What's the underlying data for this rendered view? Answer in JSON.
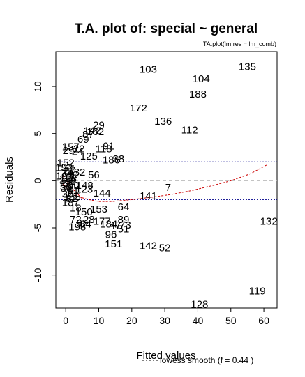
{
  "chart_data": {
    "type": "scatter",
    "title": "T.A. plot of:  special ~ general",
    "subtitle": "TA.plot(lm.res = lm_comb)",
    "xlabel": "Fitted values",
    "ylabel": "Residuals",
    "xlim": [
      -3,
      64
    ],
    "ylim": [
      -13.5,
      13.7
    ],
    "x_ticks": [
      0,
      10,
      20,
      30,
      40,
      50,
      60
    ],
    "y_ticks": [
      -10,
      -5,
      0,
      5,
      10
    ],
    "hlines": {
      "zero": 0,
      "bands": [
        2,
        -2
      ],
      "zero_color": "#bbbbbb",
      "band_color": "#00008b"
    },
    "lowess_color": "#cc0000",
    "legend": "lowess smooth (f = 0.44  )",
    "lowess": {
      "x": [
        -1,
        0,
        1,
        2,
        4,
        7,
        10,
        14,
        20,
        26,
        32,
        38,
        44,
        50,
        56,
        61
      ],
      "y": [
        -0.3,
        -0.6,
        -1.0,
        -1.35,
        -1.7,
        -2.0,
        -2.2,
        -2.2,
        -2.0,
        -1.75,
        -1.45,
        -1.05,
        -0.55,
        0.0,
        0.75,
        1.7
      ]
    },
    "lowess_lower": {
      "x": [
        -1,
        0,
        1,
        3,
        5
      ],
      "y": [
        0.5,
        0.2,
        -0.4,
        -1.2,
        -1.9
      ]
    },
    "points": [
      {
        "label": "103",
        "x": 25,
        "y": 11.8
      },
      {
        "label": "135",
        "x": 55,
        "y": 12.1
      },
      {
        "label": "104",
        "x": 41,
        "y": 10.8
      },
      {
        "label": "188",
        "x": 40,
        "y": 9.2
      },
      {
        "label": "172",
        "x": 22,
        "y": 7.7
      },
      {
        "label": "136",
        "x": 29.5,
        "y": 6.3
      },
      {
        "label": "112",
        "x": 37.5,
        "y": 5.4
      },
      {
        "label": "29",
        "x": 10,
        "y": 5.9
      },
      {
        "label": "142",
        "x": 8,
        "y": 5.3
      },
      {
        "label": "162",
        "x": 9,
        "y": 5.2
      },
      {
        "label": "87",
        "x": 6.8,
        "y": 4.9
      },
      {
        "label": "69",
        "x": 5.3,
        "y": 4.4
      },
      {
        "label": "91",
        "x": 13,
        "y": 3.7
      },
      {
        "label": "118",
        "x": 11.5,
        "y": 3.4
      },
      {
        "label": "157",
        "x": 1.5,
        "y": 3.6
      },
      {
        "label": "22",
        "x": 4,
        "y": 3.4
      },
      {
        "label": "29",
        "x": 0.8,
        "y": 3.2
      },
      {
        "label": "24",
        "x": 3.6,
        "y": 3.1
      },
      {
        "label": "125",
        "x": 7,
        "y": 2.6
      },
      {
        "label": "186",
        "x": 13.8,
        "y": 2.2
      },
      {
        "label": "38",
        "x": 16,
        "y": 2.3
      },
      {
        "label": "152",
        "x": 0,
        "y": 1.9
      },
      {
        "label": "32",
        "x": 4.2,
        "y": 0.9
      },
      {
        "label": "56",
        "x": 8.5,
        "y": 0.6
      },
      {
        "label": "148",
        "x": 5.7,
        "y": -0.5
      },
      {
        "label": "123",
        "x": 5.6,
        "y": -0.9
      },
      {
        "label": "144",
        "x": 11,
        "y": -1.3
      },
      {
        "label": "141",
        "x": 25,
        "y": -1.6
      },
      {
        "label": "7",
        "x": 31,
        "y": -0.7
      },
      {
        "label": "64",
        "x": 17.5,
        "y": -2.8
      },
      {
        "label": "153",
        "x": 10,
        "y": -3.0
      },
      {
        "label": "150",
        "x": 5.5,
        "y": -3.3
      },
      {
        "label": "18",
        "x": 3,
        "y": -2.9
      },
      {
        "label": "72",
        "x": 3,
        "y": -4.1
      },
      {
        "label": "92",
        "x": 5,
        "y": -4.5
      },
      {
        "label": "28",
        "x": 7,
        "y": -4.1
      },
      {
        "label": "177",
        "x": 11,
        "y": -4.3
      },
      {
        "label": "89",
        "x": 17.5,
        "y": -4.1
      },
      {
        "label": "84",
        "x": 6,
        "y": -4.6
      },
      {
        "label": "184",
        "x": 13,
        "y": -4.6
      },
      {
        "label": "73",
        "x": 18,
        "y": -4.7
      },
      {
        "label": "47",
        "x": 15,
        "y": -4.7
      },
      {
        "label": "198",
        "x": 3.5,
        "y": -4.9
      },
      {
        "label": "51",
        "x": 17.5,
        "y": -5.1
      },
      {
        "label": "96",
        "x": 13.7,
        "y": -5.7
      },
      {
        "label": "151",
        "x": 14.5,
        "y": -6.7
      },
      {
        "label": "142",
        "x": 25,
        "y": -6.9
      },
      {
        "label": "52",
        "x": 30,
        "y": -7.1
      },
      {
        "label": "132",
        "x": 61.5,
        "y": -4.3
      },
      {
        "label": "119",
        "x": 58,
        "y": -11.7
      },
      {
        "label": "128",
        "x": 40.5,
        "y": -13.1
      }
    ],
    "cluster_fill": [
      "152",
      "27",
      "74",
      "40",
      "15",
      "39",
      "59",
      "80",
      "30",
      "9",
      "36",
      "165",
      "193",
      "46",
      "71",
      "61",
      "7",
      "187",
      "198",
      "56",
      "82"
    ],
    "cluster_fill_pos": {
      "x": [
        -0.5,
        1.2,
        0.3,
        2.0,
        1.1,
        -0.2,
        0.8,
        2.4,
        0.1,
        1.6,
        0.6,
        1.9,
        -0.4,
        1.3,
        0.9,
        2.2,
        0.2,
        1.5,
        0.7,
        0.0,
        1.8
      ],
      "y": [
        1.4,
        1.1,
        0.8,
        0.6,
        0.3,
        0.0,
        -0.3,
        -0.5,
        -0.8,
        -1.1,
        -1.4,
        -1.7,
        0.5,
        -0.1,
        1.0,
        -1.0,
        -2.0,
        -2.3,
        0.2,
        -0.6,
        -1.9
      ]
    }
  }
}
